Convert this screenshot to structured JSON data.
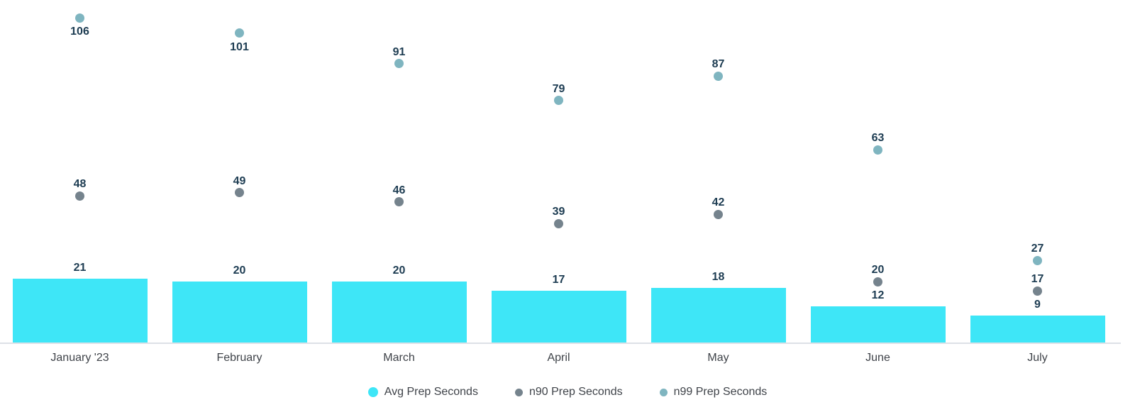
{
  "chart_data": {
    "type": "bar",
    "subtype": "combo-bar-with-scatter-points",
    "title": "",
    "xlabel": "",
    "ylabel": "",
    "categories": [
      "January '23",
      "February",
      "March",
      "April",
      "May",
      "June",
      "July"
    ],
    "series": [
      {
        "name": "Avg Prep Seconds",
        "render": "bar",
        "color": "#3ee6f7",
        "values": [
          21,
          20,
          20,
          17,
          18,
          12,
          9
        ]
      },
      {
        "name": "n90 Prep Seconds",
        "render": "point",
        "color": "#75838d",
        "values": [
          48,
          49,
          46,
          39,
          42,
          20,
          17
        ]
      },
      {
        "name": "n99 Prep Seconds",
        "render": "point",
        "color": "#7fb5c0",
        "values": [
          106,
          101,
          91,
          79,
          87,
          63,
          27
        ]
      }
    ],
    "ylim": [
      0,
      112
    ],
    "grid": false,
    "value_labels": true,
    "legend_position": "bottom",
    "label_position_overrides": {
      "n99_label_below_categories": [
        "January '23",
        "February"
      ]
    },
    "colors": {
      "value_label": "#1d3c52",
      "axis_text": "#3f4349",
      "axis_line": "#dde0e6",
      "background": "#ffffff"
    }
  }
}
